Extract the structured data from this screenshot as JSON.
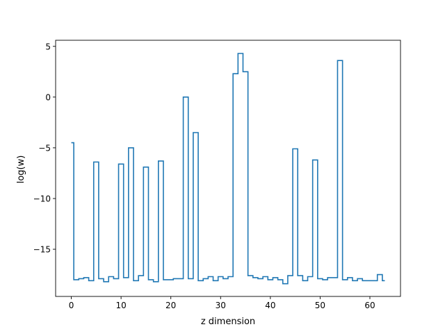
{
  "chart_data": {
    "type": "line",
    "drawstyle": "steps-mid",
    "xlabel": "z dimension",
    "ylabel": "log(w)",
    "xlim": [
      -3.15,
      66.15
    ],
    "ylim": [
      -19.65,
      5.6
    ],
    "xticks": [
      0,
      10,
      20,
      30,
      40,
      50,
      60
    ],
    "xtick_labels": [
      "0",
      "10",
      "20",
      "30",
      "40",
      "50",
      "60"
    ],
    "yticks": [
      -15,
      -10,
      -5,
      0,
      5
    ],
    "ytick_labels": [
      "−15",
      "−10",
      "−5",
      "0",
      "5"
    ],
    "grid": false,
    "series": [
      {
        "color": "#1f77b4",
        "x": [
          0,
          1,
          2,
          3,
          4,
          5,
          6,
          7,
          8,
          9,
          10,
          11,
          12,
          13,
          14,
          15,
          16,
          17,
          18,
          19,
          20,
          21,
          22,
          23,
          24,
          25,
          26,
          27,
          28,
          29,
          30,
          31,
          32,
          33,
          34,
          35,
          36,
          37,
          38,
          39,
          40,
          41,
          42,
          43,
          44,
          45,
          46,
          47,
          48,
          49,
          50,
          51,
          52,
          53,
          54,
          55,
          56,
          57,
          58,
          59,
          60,
          61,
          62,
          63
        ],
        "values": [
          -4.5,
          -18.0,
          -17.9,
          -17.8,
          -18.1,
          -6.4,
          -17.9,
          -18.2,
          -17.7,
          -17.9,
          -6.6,
          -17.8,
          -5.0,
          -18.1,
          -17.6,
          -6.9,
          -18.0,
          -18.2,
          -6.3,
          -18.0,
          -18.0,
          -17.9,
          -17.9,
          0.0,
          -17.9,
          -3.5,
          -18.1,
          -17.9,
          -17.7,
          -18.1,
          -17.7,
          -17.9,
          -17.7,
          2.3,
          4.3,
          2.5,
          -17.6,
          -17.8,
          -17.9,
          -17.7,
          -18.0,
          -17.8,
          -18.0,
          -18.4,
          -17.6,
          -5.1,
          -17.6,
          -18.1,
          -17.7,
          -6.2,
          -17.9,
          -18.0,
          -17.8,
          -17.8,
          3.6,
          -18.0,
          -17.8,
          -18.1,
          -17.9,
          -18.1,
          -18.1,
          -18.1,
          -17.5,
          -18.1
        ]
      }
    ]
  }
}
